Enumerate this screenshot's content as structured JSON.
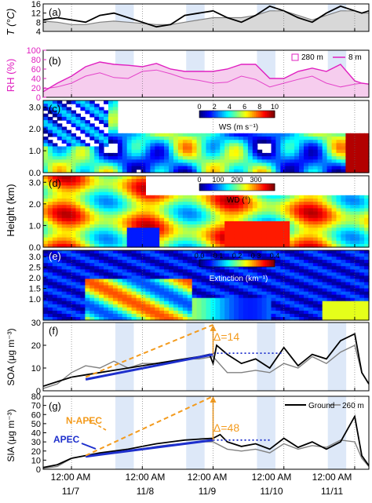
{
  "panel_labels": [
    "(a)",
    "(b)",
    "(c)",
    "(d)",
    "(e)",
    "(f)",
    "(g)"
  ],
  "time_axis": {
    "tick_time": [
      "12:00 AM",
      "12:00 AM",
      "12:00 AM",
      "12:00 AM",
      "12:00 AM"
    ],
    "tick_date": [
      "11/7",
      "11/8",
      "11/9",
      "11/10",
      "11/11"
    ],
    "tick_days": [
      1,
      2,
      3,
      4,
      5
    ],
    "range_days": [
      0.6,
      5.2
    ]
  },
  "colors": {
    "temp_fill": "#d8d8d8",
    "rh_color": "#e020c0",
    "rh_fill": "#f6cdee",
    "night_band": "#dde8f8",
    "ground": "#000000",
    "upper": "#808080",
    "apec": "#1d2fcc",
    "napec": "#f39b1e",
    "dotted": "#1d2fcc"
  },
  "colorbars": {
    "ws": {
      "ticks": [
        "0",
        "2",
        "4",
        "6",
        "8",
        "10"
      ],
      "label": "WS (m s⁻¹)"
    },
    "wd": {
      "ticks": [
        "0",
        "100",
        "200",
        "300"
      ],
      "label": "WD (°)"
    },
    "ext": {
      "ticks": [
        "0.0",
        "0.1",
        "0.2",
        "0.3",
        "0.4"
      ],
      "label": "Extinction (km⁻¹)"
    }
  },
  "annotations": {
    "delta_soa": "Δ=14",
    "delta_sia": "Δ=48",
    "napec": "N-APEC",
    "apec": "APEC"
  },
  "chart_data": [
    {
      "id": "a",
      "type": "line",
      "ylabel": "T (°C)",
      "ylim": [
        4,
        16
      ],
      "yticks": [
        4,
        8,
        12,
        16
      ],
      "series": [
        {
          "role": "ground",
          "x": [
            0.6,
            0.8,
            1.0,
            1.2,
            1.4,
            1.6,
            1.8,
            2.0,
            2.2,
            2.4,
            2.6,
            2.8,
            3.0,
            3.2,
            3.4,
            3.6,
            3.8,
            4.0,
            4.2,
            4.4,
            4.6,
            4.8,
            5.0,
            5.1,
            5.2
          ],
          "values": [
            9,
            10,
            9,
            8,
            11,
            12,
            10,
            8,
            6,
            7,
            11,
            12,
            13,
            10,
            8,
            11,
            15,
            13,
            10,
            8,
            12,
            15,
            13,
            12,
            13
          ]
        },
        {
          "role": "upper",
          "x": [
            0.6,
            0.8,
            1.0,
            1.2,
            1.4,
            1.6,
            1.8,
            2.0,
            2.2,
            2.4,
            2.6,
            2.8,
            3.0,
            3.2,
            3.4,
            3.6,
            3.8,
            4.0,
            4.2,
            4.4,
            4.6,
            4.8,
            5.0,
            5.1,
            5.2
          ],
          "values": [
            8.5,
            8,
            7,
            7,
            8,
            8.5,
            8,
            7.5,
            7,
            7,
            8,
            9,
            10,
            10,
            10,
            11,
            13,
            13,
            11,
            9,
            11,
            13,
            13,
            12,
            12
          ]
        }
      ]
    },
    {
      "id": "b",
      "type": "area",
      "ylabel": "RH (%)",
      "ylim": [
        0,
        100
      ],
      "yticks": [
        0,
        20,
        40,
        60,
        80,
        100
      ],
      "legend": [
        "280 m",
        "8 m"
      ],
      "series": [
        {
          "role": "ground",
          "x": [
            0.6,
            0.8,
            1.0,
            1.2,
            1.4,
            1.6,
            1.8,
            2.0,
            2.2,
            2.4,
            2.6,
            2.8,
            3.0,
            3.2,
            3.4,
            3.6,
            3.8,
            4.0,
            4.2,
            4.4,
            4.6,
            4.8,
            5.0,
            5.1,
            5.2
          ],
          "values": [
            18,
            22,
            30,
            45,
            52,
            42,
            40,
            55,
            58,
            50,
            40,
            36,
            30,
            32,
            45,
            38,
            22,
            30,
            38,
            45,
            30,
            22,
            28,
            30,
            28
          ]
        },
        {
          "role": "upper",
          "x": [
            0.6,
            0.8,
            1.0,
            1.2,
            1.4,
            1.6,
            1.8,
            2.0,
            2.2,
            2.4,
            2.6,
            2.8,
            3.0,
            3.2,
            3.4,
            3.6,
            3.8,
            4.0,
            4.2,
            4.4,
            4.6,
            4.8,
            5.0,
            5.1,
            5.2
          ],
          "values": [
            12,
            30,
            45,
            65,
            75,
            70,
            68,
            65,
            72,
            60,
            55,
            55,
            55,
            60,
            70,
            70,
            40,
            40,
            55,
            62,
            55,
            70,
            35,
            30,
            28
          ]
        }
      ]
    },
    {
      "id": "c",
      "type": "heatmap",
      "ylabel": "",
      "ylim": [
        0,
        3.3
      ],
      "yticks": [
        "0.0",
        "1.0",
        "2.0",
        "3.0"
      ],
      "yvalues": [
        0,
        1,
        2,
        3
      ],
      "colorbar_range": [
        0,
        10
      ]
    },
    {
      "id": "d",
      "type": "heatmap",
      "ylabel": "Height (km)",
      "ylim": [
        0,
        3.3
      ],
      "yticks": [
        "0.0",
        "1.0",
        "2.0",
        "3.0"
      ],
      "yvalues": [
        0,
        1,
        2,
        3
      ],
      "colorbar_range": [
        0,
        360
      ]
    },
    {
      "id": "e",
      "type": "heatmap",
      "ylabel": "",
      "ylim": [
        0,
        3.3
      ],
      "yticks": [
        "1.0",
        "1.5",
        "2.0",
        "2.5",
        "3.0"
      ],
      "yvalues": [
        1,
        1.5,
        2,
        2.5,
        3
      ],
      "colorbar_range": [
        0,
        0.4
      ]
    },
    {
      "id": "f",
      "type": "line",
      "ylabel": "SOA (μg m⁻³)",
      "ylim": [
        0,
        30
      ],
      "yticks": [
        0,
        10,
        20,
        30
      ],
      "series": [
        {
          "role": "ground",
          "x": [
            0.6,
            0.8,
            1.0,
            1.2,
            1.4,
            1.6,
            1.8,
            2.0,
            2.2,
            2.4,
            2.6,
            2.8,
            2.95,
            3.0,
            3.05,
            3.2,
            3.4,
            3.6,
            3.8,
            4.0,
            4.2,
            4.4,
            4.6,
            4.8,
            5.0,
            5.1,
            5.2
          ],
          "values": [
            2,
            4,
            6,
            7,
            8,
            9,
            10,
            11,
            12,
            13,
            14,
            15,
            16,
            12,
            20,
            16,
            12,
            14,
            10,
            19,
            11,
            16,
            14,
            22,
            25,
            8,
            3
          ]
        },
        {
          "role": "upper",
          "x": [
            0.6,
            0.8,
            1.0,
            1.2,
            1.4,
            1.6,
            1.8,
            2.0,
            2.2,
            2.4,
            2.6,
            2.8,
            3.0,
            3.2,
            3.4,
            3.6,
            3.8,
            4.0,
            4.2,
            4.4,
            4.6,
            4.8,
            5.0,
            5.1,
            5.2
          ],
          "values": [
            1,
            3,
            8,
            11,
            10,
            13,
            10,
            12,
            12,
            13,
            14,
            14,
            15,
            8,
            8,
            9,
            8,
            12,
            10,
            15,
            12,
            17,
            20,
            8,
            3
          ]
        }
      ],
      "trend_apec": {
        "x": [
          1.2,
          3.0
        ],
        "values": [
          5,
          16
        ]
      },
      "trend_napec": {
        "x": [
          1.2,
          3.0
        ],
        "values": [
          6,
          29
        ]
      },
      "baseline_dotted": {
        "x": [
          3.0,
          4.0
        ],
        "values": [
          16.5,
          16.5
        ]
      }
    },
    {
      "id": "g",
      "type": "line",
      "ylabel": "SIA (μg m⁻³)",
      "ylim": [
        0,
        80
      ],
      "yticks": [
        0,
        10,
        20,
        30,
        40,
        50,
        60,
        70,
        80
      ],
      "legend": [
        "Ground",
        "260 m"
      ],
      "series": [
        {
          "role": "ground",
          "x": [
            0.6,
            0.8,
            1.0,
            1.2,
            1.4,
            1.6,
            1.8,
            2.0,
            2.2,
            2.4,
            2.6,
            2.8,
            3.0,
            3.1,
            3.2,
            3.4,
            3.6,
            3.8,
            4.0,
            4.2,
            4.4,
            4.6,
            4.8,
            5.0,
            5.1,
            5.2
          ],
          "values": [
            2,
            5,
            12,
            15,
            18,
            20,
            22,
            25,
            28,
            30,
            32,
            33,
            34,
            38,
            30,
            25,
            28,
            22,
            34,
            24,
            30,
            22,
            30,
            58,
            15,
            4
          ]
        },
        {
          "role": "upper",
          "x": [
            0.6,
            0.8,
            1.0,
            1.2,
            1.4,
            1.6,
            1.8,
            2.0,
            2.2,
            2.4,
            2.6,
            2.8,
            3.0,
            3.2,
            3.4,
            3.6,
            3.8,
            4.0,
            4.2,
            4.4,
            4.6,
            4.8,
            5.0,
            5.1,
            5.2
          ],
          "values": [
            1,
            3,
            12,
            15,
            18,
            18,
            20,
            22,
            25,
            27,
            28,
            30,
            30,
            22,
            20,
            22,
            18,
            28,
            22,
            26,
            24,
            32,
            30,
            12,
            3
          ]
        }
      ],
      "trend_apec": {
        "x": [
          1.2,
          3.0
        ],
        "values": [
          14,
          32
        ]
      },
      "trend_napec": {
        "x": [
          1.2,
          3.0
        ],
        "values": [
          15,
          80
        ]
      },
      "baseline_dotted": {
        "x": [
          3.0,
          3.8
        ],
        "values": [
          32,
          32
        ]
      }
    }
  ]
}
